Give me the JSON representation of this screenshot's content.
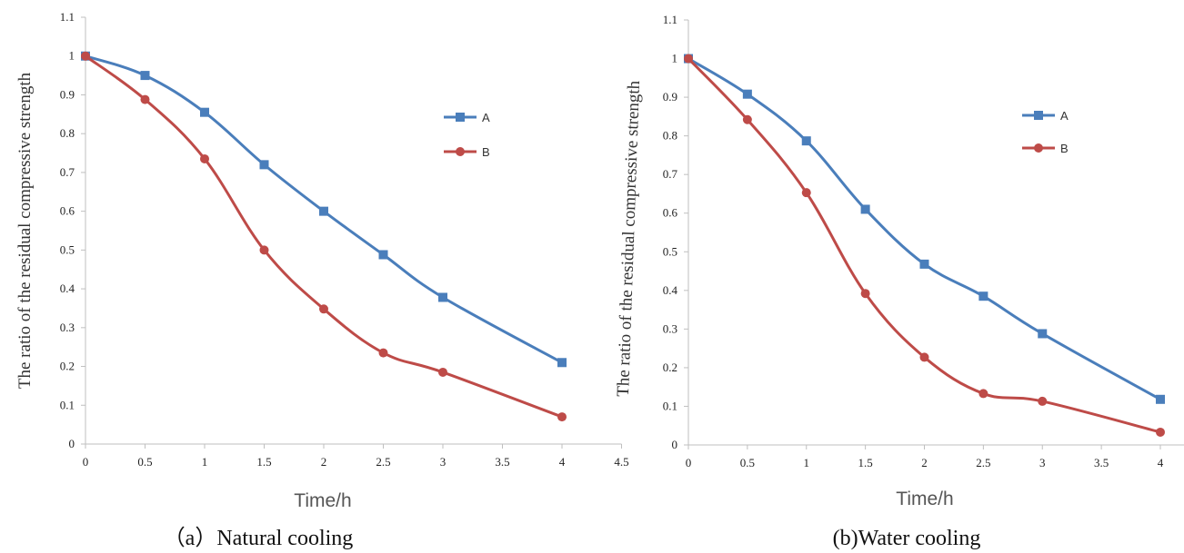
{
  "chart_data": [
    {
      "type": "line",
      "caption": "（a）Natural cooling",
      "xlabel": "Time/h",
      "ylabel": "The ratio of the residual compressive strength",
      "xlim": [
        0,
        4.5
      ],
      "ylim": [
        0,
        1.1
      ],
      "xticks": [
        "0",
        "0.5",
        "1",
        "1.5",
        "2",
        "2.5",
        "3",
        "3.5",
        "4",
        "4.5"
      ],
      "yticks": [
        "0",
        "0.1",
        "0.2",
        "0.3",
        "0.4",
        "0.5",
        "0.6",
        "0.7",
        "0.8",
        "0.9",
        "1",
        "1.1"
      ],
      "grid": false,
      "legend_position": "right",
      "x": [
        0,
        0.5,
        1,
        1.5,
        2,
        2.5,
        3,
        4
      ],
      "series": [
        {
          "name": "A",
          "color": "#4a7ebb",
          "marker": "square",
          "values": [
            1.0,
            0.95,
            0.855,
            0.72,
            0.6,
            0.488,
            0.378,
            0.21
          ]
        },
        {
          "name": "B",
          "color": "#be4b48",
          "marker": "circle",
          "values": [
            1.0,
            0.888,
            0.735,
            0.5,
            0.348,
            0.235,
            0.185,
            0.07
          ]
        }
      ]
    },
    {
      "type": "line",
      "caption": "(b)Water cooling",
      "xlabel": "Time/h",
      "ylabel": "The ratio of the residual compressive strength",
      "xlim": [
        0,
        4.5
      ],
      "ylim": [
        0,
        1.1
      ],
      "xticks": [
        "0",
        "0.5",
        "1",
        "1.5",
        "2",
        "2.5",
        "3",
        "3.5",
        "4",
        "4.5"
      ],
      "yticks": [
        "0",
        "0.1",
        "0.2",
        "0.3",
        "0.4",
        "0.5",
        "0.6",
        "0.7",
        "0.8",
        "0.9",
        "1",
        "1.1"
      ],
      "grid": false,
      "legend_position": "right",
      "x": [
        0,
        0.5,
        1,
        1.5,
        2,
        2.5,
        3,
        4
      ],
      "series": [
        {
          "name": "A",
          "color": "#4a7ebb",
          "marker": "square",
          "values": [
            1.0,
            0.908,
            0.787,
            0.61,
            0.468,
            0.385,
            0.288,
            0.118
          ]
        },
        {
          "name": "B",
          "color": "#be4b48",
          "marker": "circle",
          "values": [
            1.0,
            0.842,
            0.653,
            0.392,
            0.227,
            0.133,
            0.113,
            0.033
          ]
        }
      ]
    }
  ]
}
